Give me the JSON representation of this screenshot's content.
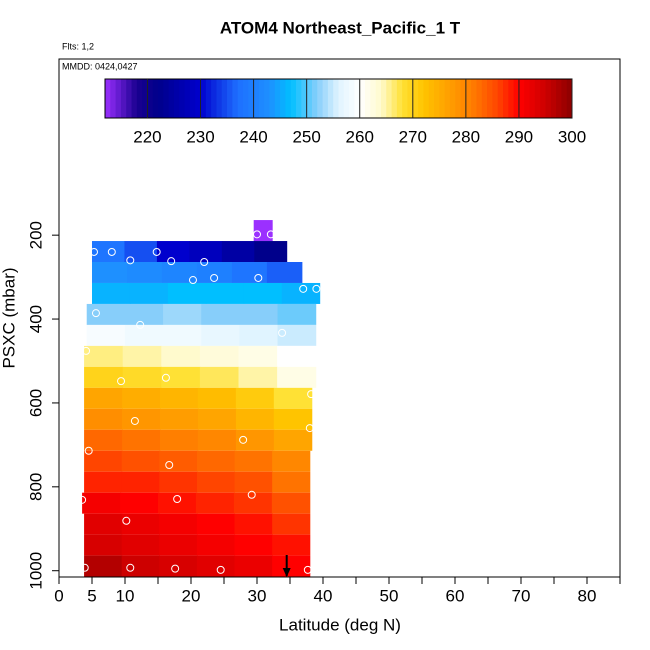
{
  "chart_data": {
    "type": "heatmap",
    "title": "ATOM4 Northeast_Pacific_1 T",
    "subtitle": "Flts: 1,2",
    "annotation": "MMDD: 0424,0427",
    "xlabel": "Latitude (deg N)",
    "ylabel": "PSXC (mbar)",
    "xlim": [
      0,
      85
    ],
    "xticks": [
      0,
      5,
      10,
      20,
      30,
      40,
      50,
      60,
      70,
      80
    ],
    "xticks_minor": [
      15,
      25,
      35,
      45,
      55,
      65,
      75,
      85
    ],
    "ylim": [
      1015,
      -220
    ],
    "yticks": [
      200,
      400,
      600,
      800,
      1000
    ],
    "colorbar": {
      "lim": [
        212,
        300
      ],
      "ticks": [
        220,
        230,
        240,
        250,
        260,
        270,
        280,
        290,
        300
      ],
      "stops": [
        [
          212,
          "#9b30ff"
        ],
        [
          218,
          "#1a0090"
        ],
        [
          222,
          "#00008b"
        ],
        [
          230,
          "#0000cd"
        ],
        [
          237,
          "#1e6fff"
        ],
        [
          243,
          "#1e90ff"
        ],
        [
          247,
          "#00bfff"
        ],
        [
          252,
          "#87cefa"
        ],
        [
          256,
          "#e0f4ff"
        ],
        [
          260,
          "#ffffff"
        ],
        [
          264,
          "#fffacd"
        ],
        [
          268,
          "#ffe135"
        ],
        [
          272,
          "#ffc400"
        ],
        [
          276,
          "#ffa500"
        ],
        [
          281,
          "#ff7f00"
        ],
        [
          286,
          "#ff4500"
        ],
        [
          290,
          "#ff0000"
        ],
        [
          295,
          "#cd0000"
        ],
        [
          300,
          "#8b0000"
        ]
      ]
    },
    "rows": [
      {
        "p": [
          164,
          214
        ],
        "lat": [
          29.5,
          32.3
        ],
        "values": [
          212
        ]
      },
      {
        "p": [
          214,
          264
        ],
        "lat": [
          5,
          34.5
        ],
        "values": [
          238,
          235,
          230,
          228,
          225,
          222
        ]
      },
      {
        "p": [
          264,
          314
        ],
        "lat": [
          5,
          36.8
        ],
        "values": [
          243,
          242,
          241,
          240,
          238,
          236
        ]
      },
      {
        "p": [
          314,
          364
        ],
        "lat": [
          5,
          39.5
        ],
        "values": [
          246,
          246,
          247,
          247,
          247,
          246
        ]
      },
      {
        "p": [
          364,
          414
        ],
        "lat": [
          4.2,
          38.9
        ],
        "values": [
          252,
          252,
          253,
          252,
          252,
          251
        ]
      },
      {
        "p": [
          414,
          464
        ],
        "lat": [
          4.2,
          38.9
        ],
        "values": [
          259,
          258,
          258,
          257,
          256,
          255
        ]
      },
      {
        "p": [
          464,
          514
        ],
        "lat": [
          3.8,
          38.9
        ],
        "values": [
          266,
          265,
          264,
          263,
          262,
          260
        ]
      },
      {
        "p": [
          514,
          564
        ],
        "lat": [
          3.8,
          38.9
        ],
        "values": [
          270,
          269,
          268,
          267,
          265,
          262
        ]
      },
      {
        "p": [
          564,
          614
        ],
        "lat": [
          3.8,
          38.3
        ],
        "values": [
          276,
          275,
          274,
          273,
          271,
          268
        ]
      },
      {
        "p": [
          614,
          664
        ],
        "lat": [
          3.8,
          38.3
        ],
        "values": [
          279,
          278,
          277,
          276,
          274,
          272
        ]
      },
      {
        "p": [
          664,
          714
        ],
        "lat": [
          3.8,
          38.3
        ],
        "values": [
          283,
          282,
          281,
          280,
          278,
          276
        ]
      },
      {
        "p": [
          714,
          764
        ],
        "lat": [
          3.8,
          38.0
        ],
        "values": [
          286,
          285,
          284,
          283,
          282,
          280
        ]
      },
      {
        "p": [
          764,
          814
        ],
        "lat": [
          3.8,
          38.0
        ],
        "values": [
          288,
          288,
          287,
          286,
          285,
          282
        ]
      },
      {
        "p": [
          814,
          864
        ],
        "lat": [
          3.5,
          38.0
        ],
        "values": [
          291,
          290,
          289,
          288,
          287,
          285
        ]
      },
      {
        "p": [
          864,
          914
        ],
        "lat": [
          3.8,
          38.0
        ],
        "values": [
          293,
          292,
          291,
          290,
          289,
          287
        ]
      },
      {
        "p": [
          914,
          964
        ],
        "lat": [
          3.8,
          38.0
        ],
        "values": [
          294,
          293,
          292,
          291,
          290,
          289
        ]
      },
      {
        "p": [
          964,
          1014
        ],
        "lat": [
          3.8,
          38.0
        ],
        "values": [
          297,
          295,
          294,
          293,
          292,
          290
        ]
      }
    ],
    "points": {
      "x": [
        30,
        32.1,
        5.3,
        8,
        10.8,
        14.8,
        17,
        22,
        20.3,
        23.5,
        30.2,
        37,
        39,
        5.6,
        12.3,
        33.8,
        34,
        4.1,
        16.2,
        9.4,
        38.2,
        11.5,
        27.9,
        38,
        4.5,
        16.7,
        17.9,
        29.2,
        3.5,
        10.2,
        3.9,
        10.8,
        17.6,
        24.5,
        37.7
      ],
      "y": [
        198,
        198,
        240,
        240,
        260,
        240,
        262,
        264,
        307,
        302,
        302,
        328,
        328,
        386,
        414,
        433,
        476,
        476,
        540,
        548,
        579,
        643,
        688,
        660,
        714,
        748,
        829,
        819,
        831,
        881,
        993,
        993,
        995,
        998,
        998
      ]
    },
    "marker": {
      "x": 34.5
    }
  }
}
